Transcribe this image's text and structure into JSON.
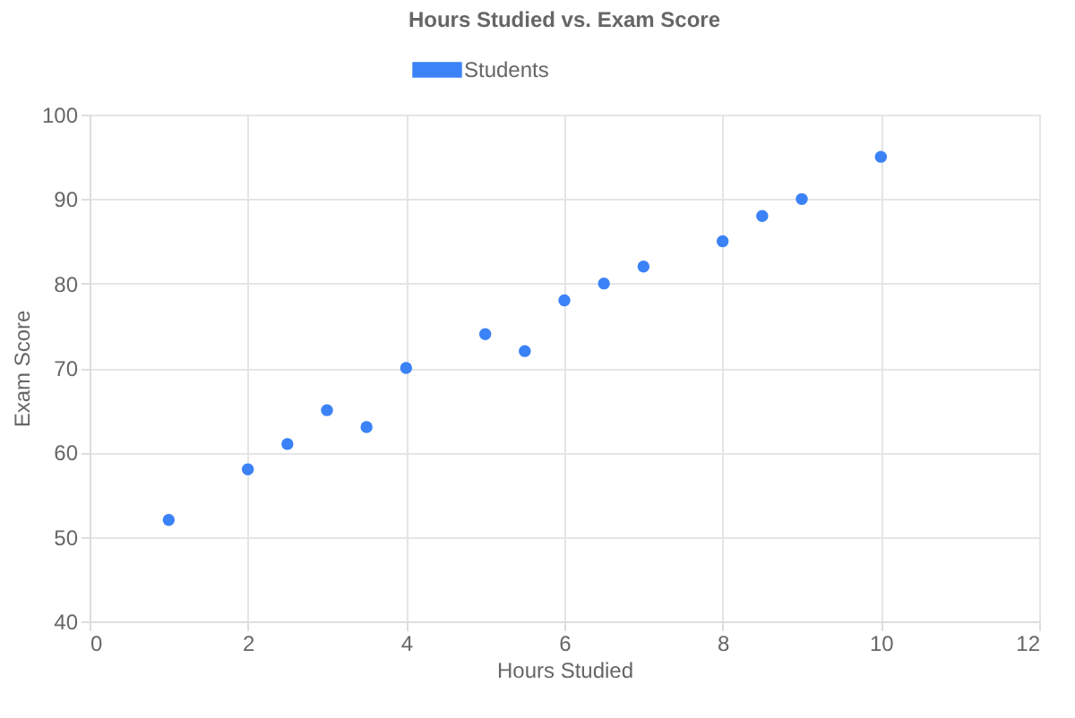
{
  "chart_data": {
    "type": "scatter",
    "title": "Hours Studied vs. Exam Score",
    "xlabel": "Hours Studied",
    "ylabel": "Exam Score",
    "x": [
      1,
      2,
      2.5,
      3,
      3.5,
      4,
      5,
      5.5,
      6,
      6.5,
      7,
      8,
      8.5,
      9,
      10
    ],
    "series": [
      {
        "name": "Students",
        "color": "#3b82f6",
        "values": [
          52,
          58,
          61,
          65,
          63,
          70,
          74,
          72,
          78,
          80,
          82,
          85,
          88,
          90,
          95
        ]
      }
    ],
    "xlim": [
      0,
      12
    ],
    "xticks": [
      0,
      2,
      4,
      6,
      8,
      10,
      12
    ],
    "ylim": [
      40,
      100
    ],
    "yticks": [
      40,
      50,
      60,
      70,
      80,
      90,
      100
    ],
    "grid": true,
    "legend": "top",
    "marker": "circle"
  }
}
